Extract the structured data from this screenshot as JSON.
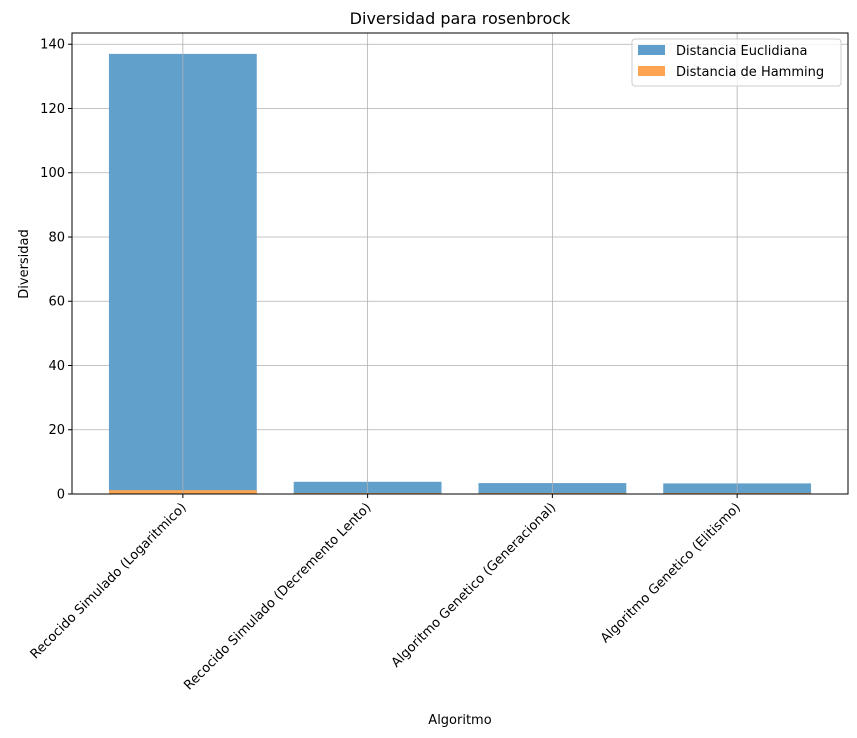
{
  "chart_data": {
    "type": "bar",
    "title": "Diversidad para rosenbrock",
    "xlabel": "Algoritmo",
    "ylabel": "Diversidad",
    "categories": [
      "Recocido Simulado (Logaritmico)",
      "Recocido Simulado (Decremento Lento)",
      "Algoritmo Genetico (Generacional)",
      "Algoritmo Genetico (Elitismo)"
    ],
    "series": [
      {
        "name": "Distancia Euclidiana",
        "values": [
          137.0,
          3.8,
          3.4,
          3.3
        ],
        "color": "#5f9ecb"
      },
      {
        "name": "Distancia de Hamming",
        "values": [
          1.2,
          0.3,
          0.3,
          0.3
        ],
        "color": "#fca451"
      }
    ],
    "ylim": [
      0,
      143.5
    ],
    "yticks": [
      0,
      20,
      40,
      60,
      80,
      100,
      120,
      140
    ],
    "grid": true,
    "legend_position": "top-right",
    "bars_overlaid": true
  }
}
